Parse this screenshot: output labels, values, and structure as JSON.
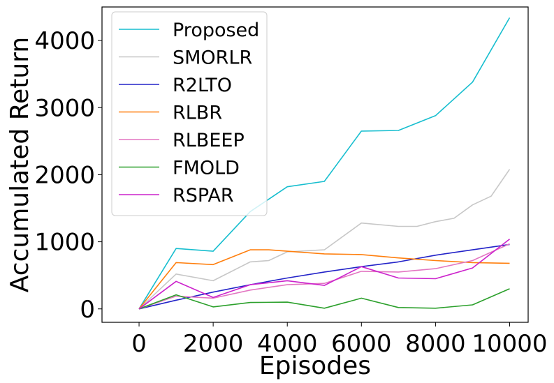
{
  "chart_data": {
    "type": "line",
    "title": "",
    "xlabel": "Episodes",
    "ylabel": "Accumulated Return",
    "xlim": [
      -1000,
      10500
    ],
    "ylim": [
      -200,
      4500
    ],
    "xticks": [
      0,
      2000,
      4000,
      6000,
      8000,
      10000
    ],
    "xtick_labels": [
      "0",
      "2000",
      "4000",
      "6000",
      "8000",
      "10000"
    ],
    "yticks": [
      0,
      1000,
      2000,
      3000,
      4000
    ],
    "ytick_labels": [
      "0",
      "1000",
      "2000",
      "3000",
      "4000"
    ],
    "grid": false,
    "legend_position": "top-left",
    "series": [
      {
        "name": "Proposed",
        "color": "#17becf",
        "x": [
          0,
          1000,
          2000,
          3000,
          4000,
          5000,
          6000,
          7000,
          8000,
          9000,
          10000
        ],
        "y": [
          0,
          900,
          860,
          1450,
          1820,
          1900,
          2650,
          2660,
          2880,
          3380,
          4340
        ]
      },
      {
        "name": "SMORLR",
        "color": "#c7c7c7",
        "x": [
          0,
          1000,
          2000,
          3000,
          3500,
          4000,
          5000,
          6000,
          7000,
          7500,
          8000,
          8500,
          9000,
          9500,
          10000
        ],
        "y": [
          0,
          520,
          420,
          700,
          720,
          850,
          880,
          1280,
          1230,
          1230,
          1300,
          1350,
          1550,
          1680,
          2080
        ]
      },
      {
        "name": "R2LTO",
        "color": "#2323c8",
        "x": [
          0,
          1000,
          2000,
          3000,
          4000,
          5000,
          6000,
          7000,
          8000,
          9000,
          10000
        ],
        "y": [
          0,
          130,
          250,
          360,
          460,
          550,
          630,
          700,
          800,
          880,
          960
        ]
      },
      {
        "name": "RLBR",
        "color": "#ff7f0e",
        "x": [
          0,
          1000,
          2000,
          3000,
          3500,
          4000,
          5000,
          6000,
          7000,
          8000,
          9000,
          10000
        ],
        "y": [
          0,
          690,
          660,
          880,
          880,
          860,
          820,
          810,
          760,
          720,
          690,
          680
        ]
      },
      {
        "name": "RLBEEP",
        "color": "#e377c2",
        "x": [
          0,
          1000,
          2000,
          3000,
          4000,
          5000,
          6000,
          7000,
          8000,
          9000,
          10000
        ],
        "y": [
          0,
          190,
          160,
          280,
          360,
          380,
          560,
          550,
          600,
          720,
          970
        ]
      },
      {
        "name": "FMOLD",
        "color": "#2ca02c",
        "x": [
          0,
          1000,
          2000,
          3000,
          4000,
          5000,
          6000,
          7000,
          8000,
          9000,
          10000
        ],
        "y": [
          0,
          210,
          30,
          95,
          100,
          10,
          160,
          20,
          10,
          60,
          300
        ]
      },
      {
        "name": "RSPAR",
        "color": "#cc22cc",
        "x": [
          0,
          1000,
          2000,
          3000,
          4000,
          5000,
          6000,
          7000,
          8000,
          9000,
          10000
        ],
        "y": [
          0,
          410,
          170,
          360,
          420,
          350,
          630,
          460,
          450,
          610,
          1040
        ]
      }
    ]
  }
}
